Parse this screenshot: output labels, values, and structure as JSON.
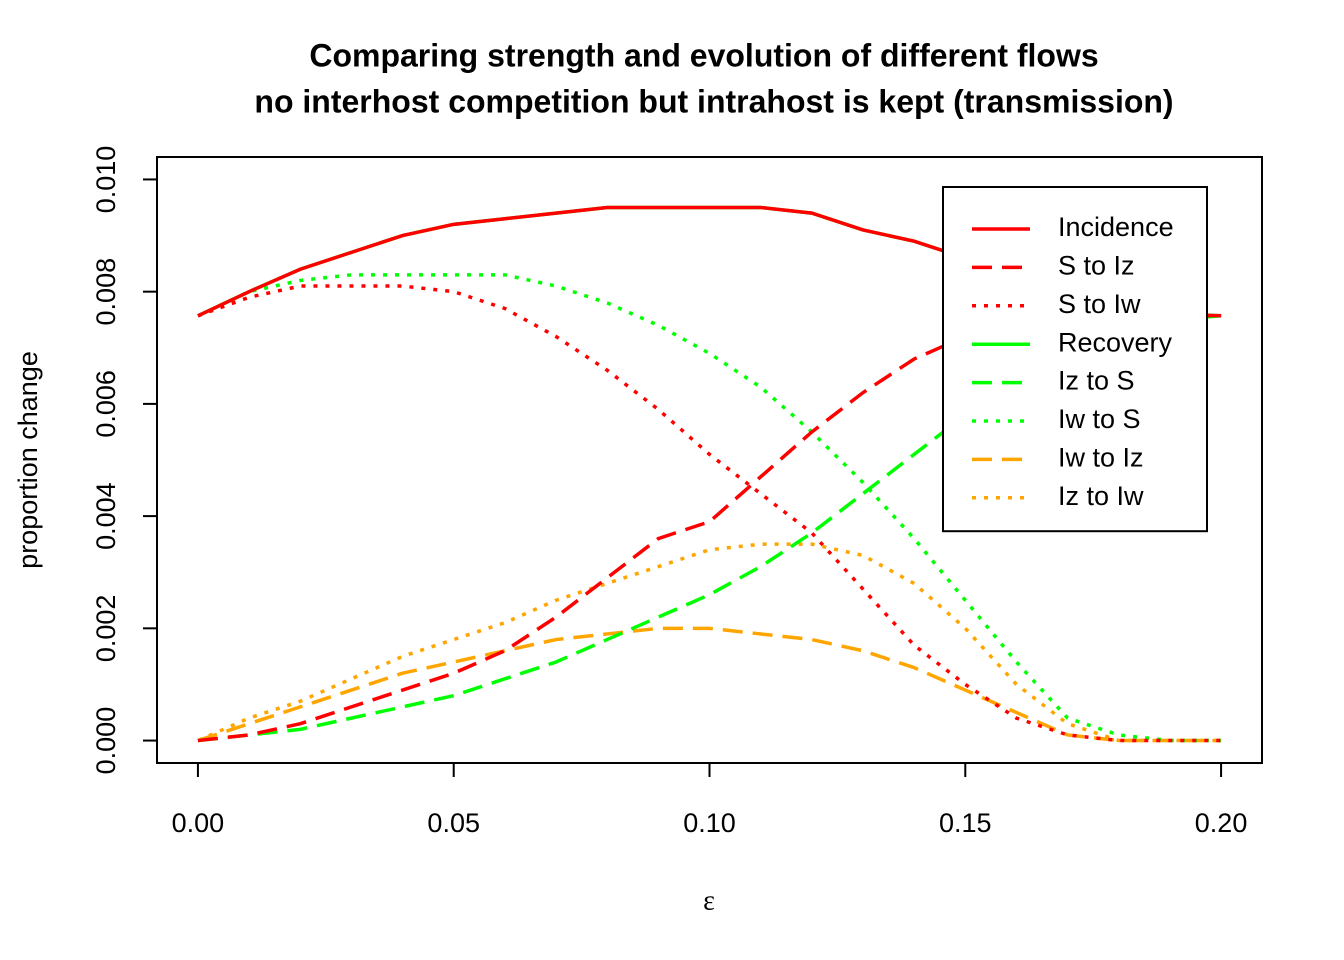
{
  "chart_data": {
    "type": "line",
    "title": "Comparing strength and evolution of different flows",
    "subtitle": "no interhost competition but intrahost is kept (transmission)",
    "x_label": "ε",
    "y_label": "proportion change",
    "x": [
      0,
      0.01,
      0.02,
      0.03,
      0.04,
      0.05,
      0.06,
      0.07,
      0.08,
      0.09,
      0.1,
      0.11,
      0.12,
      0.13,
      0.14,
      0.15,
      0.16,
      0.17,
      0.18,
      0.19,
      0.2
    ],
    "xlim": [
      -0.008,
      0.208
    ],
    "ylim": [
      -0.0004,
      0.0104
    ],
    "xticks": [
      {
        "value": 0,
        "label": "0.00"
      },
      {
        "value": 0.05,
        "label": "0.05"
      },
      {
        "value": 0.1,
        "label": "0.10"
      },
      {
        "value": 0.15,
        "label": "0.15"
      },
      {
        "value": 0.2,
        "label": "0.20"
      }
    ],
    "yticks": [
      {
        "value": 0,
        "label": "0.000"
      },
      {
        "value": 0.002,
        "label": "0.002"
      },
      {
        "value": 0.004,
        "label": "0.004"
      },
      {
        "value": 0.006,
        "label": "0.006"
      },
      {
        "value": 0.008,
        "label": "0.008"
      },
      {
        "value": 0.01,
        "label": "0.010"
      }
    ],
    "legend": "top-right",
    "series": [
      {
        "name": "Incidence",
        "color": "#ff0000",
        "dash": "solid",
        "values": [
          0.00757,
          0.008,
          0.0084,
          0.0087,
          0.009,
          0.0092,
          0.0093,
          0.0094,
          0.0095,
          0.0095,
          0.0095,
          0.0095,
          0.0094,
          0.0091,
          0.0089,
          0.0086,
          0.0083,
          0.008,
          0.0078,
          0.0076,
          0.00757
        ]
      },
      {
        "name": "S to Iz",
        "color": "#ff0000",
        "dash": "dashed",
        "values": [
          0,
          0.0001,
          0.0003,
          0.0006,
          0.0009,
          0.0012,
          0.0016,
          0.0022,
          0.0029,
          0.0036,
          0.0039,
          0.0047,
          0.0055,
          0.0062,
          0.0068,
          0.0072,
          0.0074,
          0.0075,
          0.0076,
          0.00757,
          0.00757
        ]
      },
      {
        "name": "S to Iw",
        "color": "#ff0000",
        "dash": "dotted",
        "values": [
          0.00757,
          0.0079,
          0.0081,
          0.0081,
          0.0081,
          0.008,
          0.0077,
          0.0072,
          0.0066,
          0.0059,
          0.0051,
          0.0044,
          0.0037,
          0.0027,
          0.0017,
          0.001,
          0.0004,
          0.0001,
          0,
          0,
          0
        ]
      },
      {
        "name": "Recovery",
        "color": "#00ff00",
        "dash": "solid",
        "values": [
          0.00757,
          0.008,
          0.0084,
          0.0087,
          0.009,
          0.0092,
          0.0093,
          0.0094,
          0.0095,
          0.0095,
          0.0095,
          0.0095,
          0.0094,
          0.0091,
          0.0089,
          0.0086,
          0.0083,
          0.008,
          0.0078,
          0.0076,
          0.00757
        ]
      },
      {
        "name": "Iz to S",
        "color": "#00ff00",
        "dash": "dashed",
        "values": [
          0,
          0.0001,
          0.0002,
          0.0004,
          0.0006,
          0.0008,
          0.0011,
          0.0014,
          0.0018,
          0.0022,
          0.0026,
          0.0031,
          0.0037,
          0.0044,
          0.0051,
          0.0058,
          0.0065,
          0.007,
          0.0073,
          0.0075,
          0.00757
        ]
      },
      {
        "name": "Iw to S",
        "color": "#00ff00",
        "dash": "dotted",
        "values": [
          0.00757,
          0.008,
          0.0082,
          0.0083,
          0.0083,
          0.0083,
          0.0083,
          0.0081,
          0.0078,
          0.0074,
          0.0069,
          0.0063,
          0.0055,
          0.0046,
          0.0036,
          0.0025,
          0.0014,
          0.0004,
          0.0001,
          0,
          0
        ]
      },
      {
        "name": "Iw to Iz",
        "color": "#ffa500",
        "dash": "dashed",
        "values": [
          0,
          0.0003,
          0.0006,
          0.0009,
          0.0012,
          0.0014,
          0.0016,
          0.0018,
          0.0019,
          0.002,
          0.002,
          0.0019,
          0.0018,
          0.0016,
          0.0013,
          0.0009,
          0.0005,
          0.0001,
          0,
          0,
          0
        ]
      },
      {
        "name": "Iz to Iw",
        "color": "#ffa500",
        "dash": "dotted",
        "values": [
          0,
          0.0004,
          0.0007,
          0.0011,
          0.0015,
          0.0018,
          0.0021,
          0.0025,
          0.0028,
          0.0031,
          0.0034,
          0.0035,
          0.0035,
          0.0033,
          0.0028,
          0.002,
          0.001,
          0.0003,
          0,
          0,
          0
        ]
      }
    ]
  }
}
